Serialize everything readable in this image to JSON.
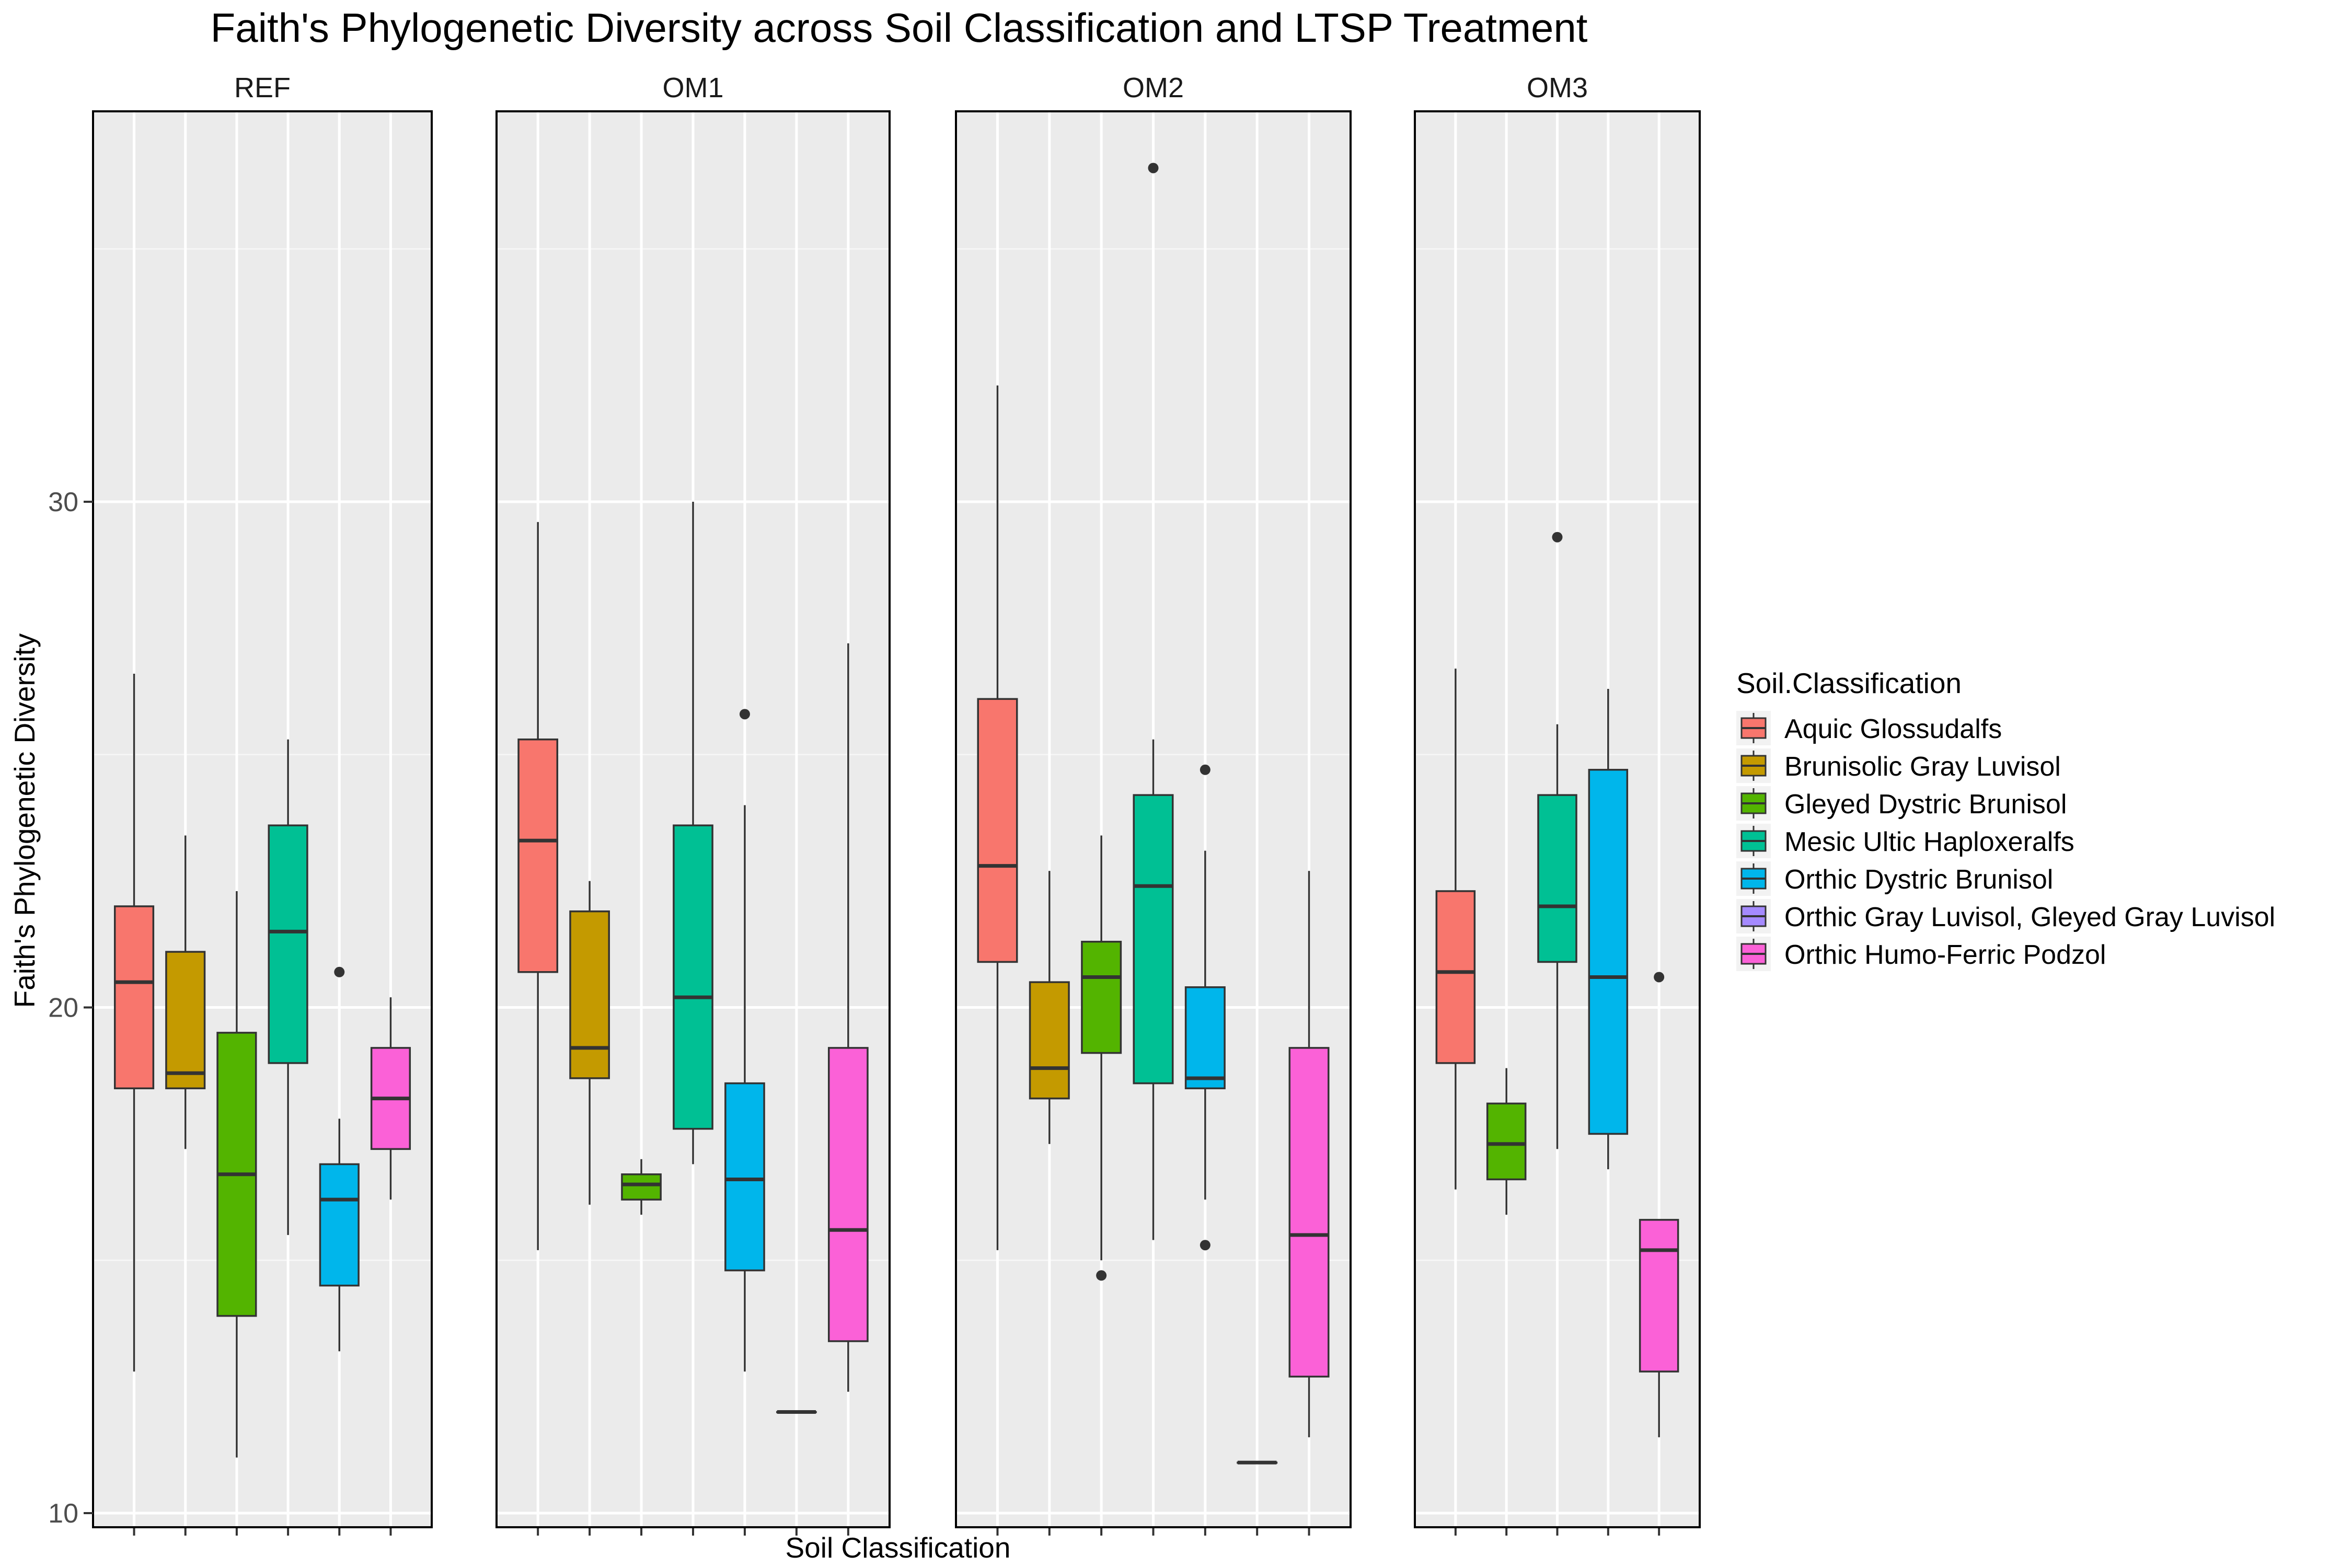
{
  "chart_data": {
    "type": "boxplot",
    "title": "Faith's Phylogenetic Diversity across Soil Classification and LTSP Treatment",
    "xlabel": "Soil Classification",
    "ylabel": "Faith's Phylogenetic Diversity",
    "ylim": [
      9.7,
      37.8
    ],
    "y_ticks": [
      10,
      20,
      30
    ],
    "grid": true,
    "legend": {
      "title": "Soil.Classification",
      "placement": "right",
      "entries": [
        {
          "label": "Aquic Glossudalfs",
          "color": "#F8766D"
        },
        {
          "label": "Brunisolic Gray Luvisol",
          "color": "#C49A00"
        },
        {
          "label": "Gleyed Dystric Brunisol",
          "color": "#53B400"
        },
        {
          "label": "Mesic Ultic Haploxeralfs",
          "color": "#00C094"
        },
        {
          "label": "Orthic Dystric Brunisol",
          "color": "#00B6EB"
        },
        {
          "label": "Orthic Gray Luvisol, Gleyed Gray Luvisol",
          "color": "#A58AFF"
        },
        {
          "label": "Orthic Humo-Ferric Podzol",
          "color": "#FB61D7"
        }
      ]
    },
    "panels": [
      {
        "name": "REF",
        "categories": [
          "Aquic Glossudalfs",
          "Brunisolic Gray Luvisol",
          "Gleyed Dystric Brunisol",
          "Mesic Ultic Haploxeralfs",
          "Orthic Dystric Brunisol",
          "Orthic Humo-Ferric Podzol"
        ],
        "boxes": [
          {
            "category": "Aquic Glossudalfs",
            "color": "#F8766D",
            "whisker_low": 12.8,
            "q1": 18.4,
            "median": 20.5,
            "q3": 22.0,
            "whisker_high": 26.6,
            "outliers": []
          },
          {
            "category": "Brunisolic Gray Luvisol",
            "color": "#C49A00",
            "whisker_low": 17.2,
            "q1": 18.4,
            "median": 18.7,
            "q3": 21.1,
            "whisker_high": 23.4,
            "outliers": []
          },
          {
            "category": "Gleyed Dystric Brunisol",
            "color": "#53B400",
            "whisker_low": 11.1,
            "q1": 13.9,
            "median": 16.7,
            "q3": 19.5,
            "whisker_high": 22.3,
            "outliers": []
          },
          {
            "category": "Mesic Ultic Haploxeralfs",
            "color": "#00C094",
            "whisker_low": 15.5,
            "q1": 18.9,
            "median": 21.5,
            "q3": 23.6,
            "whisker_high": 25.3,
            "outliers": []
          },
          {
            "category": "Orthic Dystric Brunisol",
            "color": "#00B6EB",
            "whisker_low": 13.2,
            "q1": 14.5,
            "median": 16.2,
            "q3": 16.9,
            "whisker_high": 17.8,
            "outliers": [
              20.7
            ]
          },
          {
            "category": "Orthic Humo-Ferric Podzol",
            "color": "#FB61D7",
            "whisker_low": 16.2,
            "q1": 17.2,
            "median": 18.2,
            "q3": 19.2,
            "whisker_high": 20.2,
            "outliers": []
          }
        ]
      },
      {
        "name": "OM1",
        "categories": [
          "Aquic Glossudalfs",
          "Brunisolic Gray Luvisol",
          "Gleyed Dystric Brunisol",
          "Mesic Ultic Haploxeralfs",
          "Orthic Dystric Brunisol",
          "Orthic Gray Luvisol, Gleyed Gray Luvisol",
          "Orthic Humo-Ferric Podzol"
        ],
        "boxes": [
          {
            "category": "Aquic Glossudalfs",
            "color": "#F8766D",
            "whisker_low": 15.2,
            "q1": 20.7,
            "median": 23.3,
            "q3": 25.3,
            "whisker_high": 29.6,
            "outliers": []
          },
          {
            "category": "Brunisolic Gray Luvisol",
            "color": "#C49A00",
            "whisker_low": 16.1,
            "q1": 18.6,
            "median": 19.2,
            "q3": 21.9,
            "whisker_high": 22.5,
            "outliers": []
          },
          {
            "category": "Gleyed Dystric Brunisol",
            "color": "#53B400",
            "whisker_low": 15.9,
            "q1": 16.2,
            "median": 16.5,
            "q3": 16.7,
            "whisker_high": 17.0,
            "outliers": []
          },
          {
            "category": "Mesic Ultic Haploxeralfs",
            "color": "#00C094",
            "whisker_low": 16.9,
            "q1": 17.6,
            "median": 20.2,
            "q3": 23.6,
            "whisker_high": 30.0,
            "outliers": []
          },
          {
            "category": "Orthic Dystric Brunisol",
            "color": "#00B6EB",
            "whisker_low": 12.8,
            "q1": 14.8,
            "median": 16.6,
            "q3": 18.5,
            "whisker_high": 24.0,
            "outliers": [
              25.8
            ]
          },
          {
            "category": "Orthic Gray Luvisol, Gleyed Gray Luvisol",
            "color": "#A58AFF",
            "whisker_low": 12.0,
            "q1": 12.0,
            "median": 12.0,
            "q3": 12.0,
            "whisker_high": 12.0,
            "outliers": []
          },
          {
            "category": "Orthic Humo-Ferric Podzol",
            "color": "#FB61D7",
            "whisker_low": 12.4,
            "q1": 13.4,
            "median": 15.6,
            "q3": 19.2,
            "whisker_high": 27.2,
            "outliers": []
          }
        ]
      },
      {
        "name": "OM2",
        "categories": [
          "Aquic Glossudalfs",
          "Brunisolic Gray Luvisol",
          "Gleyed Dystric Brunisol",
          "Mesic Ultic Haploxeralfs",
          "Orthic Dystric Brunisol",
          "Orthic Gray Luvisol, Gleyed Gray Luvisol",
          "Orthic Humo-Ferric Podzol"
        ],
        "boxes": [
          {
            "category": "Aquic Glossudalfs",
            "color": "#F8766D",
            "whisker_low": 15.2,
            "q1": 20.9,
            "median": 22.8,
            "q3": 26.1,
            "whisker_high": 32.3,
            "outliers": []
          },
          {
            "category": "Brunisolic Gray Luvisol",
            "color": "#C49A00",
            "whisker_low": 17.3,
            "q1": 18.2,
            "median": 18.8,
            "q3": 20.5,
            "whisker_high": 22.7,
            "outliers": []
          },
          {
            "category": "Gleyed Dystric Brunisol",
            "color": "#53B400",
            "whisker_low": 15.0,
            "q1": 19.1,
            "median": 20.6,
            "q3": 21.3,
            "whisker_high": 23.4,
            "outliers": [
              14.7
            ]
          },
          {
            "category": "Mesic Ultic Haploxeralfs",
            "color": "#00C094",
            "whisker_low": 15.4,
            "q1": 18.5,
            "median": 22.4,
            "q3": 24.2,
            "whisker_high": 25.3,
            "outliers": [
              36.6
            ]
          },
          {
            "category": "Orthic Dystric Brunisol",
            "color": "#00B6EB",
            "whisker_low": 16.2,
            "q1": 18.4,
            "median": 18.6,
            "q3": 20.4,
            "whisker_high": 23.1,
            "outliers": [
              24.7,
              15.3
            ]
          },
          {
            "category": "Orthic Gray Luvisol, Gleyed Gray Luvisol",
            "color": "#A58AFF",
            "whisker_low": 11.0,
            "q1": 11.0,
            "median": 11.0,
            "q3": 11.0,
            "whisker_high": 11.0,
            "outliers": []
          },
          {
            "category": "Orthic Humo-Ferric Podzol",
            "color": "#FB61D7",
            "whisker_low": 11.5,
            "q1": 12.7,
            "median": 15.5,
            "q3": 19.2,
            "whisker_high": 22.7,
            "outliers": []
          }
        ]
      },
      {
        "name": "OM3",
        "categories": [
          "Aquic Glossudalfs",
          "Gleyed Dystric Brunisol",
          "Mesic Ultic Haploxeralfs",
          "Orthic Dystric Brunisol",
          "Orthic Humo-Ferric Podzol"
        ],
        "boxes": [
          {
            "category": "Aquic Glossudalfs",
            "color": "#F8766D",
            "whisker_low": 16.4,
            "q1": 18.9,
            "median": 20.7,
            "q3": 22.3,
            "whisker_high": 26.7,
            "outliers": []
          },
          {
            "category": "Gleyed Dystric Brunisol",
            "color": "#53B400",
            "whisker_low": 15.9,
            "q1": 16.6,
            "median": 17.3,
            "q3": 18.1,
            "whisker_high": 18.8,
            "outliers": []
          },
          {
            "category": "Mesic Ultic Haploxeralfs",
            "color": "#00C094",
            "whisker_low": 17.2,
            "q1": 20.9,
            "median": 22.0,
            "q3": 24.2,
            "whisker_high": 25.6,
            "outliers": [
              29.3
            ]
          },
          {
            "category": "Orthic Dystric Brunisol",
            "color": "#00B6EB",
            "whisker_low": 16.8,
            "q1": 17.5,
            "median": 20.6,
            "q3": 24.7,
            "whisker_high": 26.3,
            "outliers": []
          },
          {
            "category": "Orthic Humo-Ferric Podzol",
            "color": "#FB61D7",
            "whisker_low": 11.5,
            "q1": 12.8,
            "median": 15.2,
            "q3": 15.8,
            "whisker_high": 15.8,
            "outliers": [
              20.6
            ]
          }
        ]
      }
    ]
  }
}
